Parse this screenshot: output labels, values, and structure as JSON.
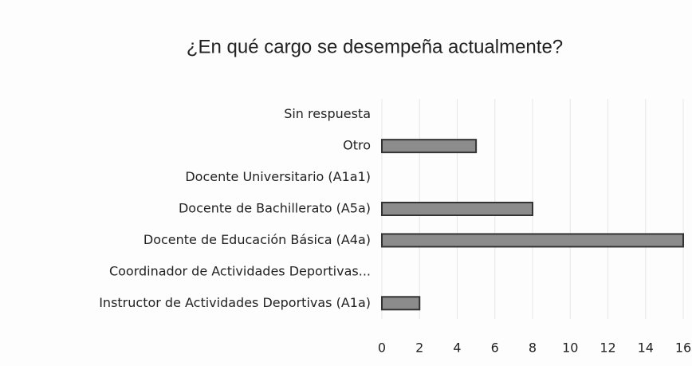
{
  "chart_data": {
    "type": "bar",
    "orientation": "horizontal",
    "title": "¿En qué cargo se desempeña actualmente?",
    "categories": [
      "Sin respuesta",
      "Otro",
      "Docente Universitario (A1a1)",
      "Docente de Bachillerato (A5a)",
      "Docente de Educación Básica (A4a)",
      "Coordinador de Actividades Deportivas...",
      "Instructor de Actividades Deportivas (A1a)"
    ],
    "values": [
      0,
      5,
      0,
      8,
      16,
      0,
      2
    ],
    "color": "#8c8c8c",
    "xlim": [
      0,
      16
    ],
    "xticks": [
      0,
      2,
      4,
      6,
      8,
      10,
      12,
      14,
      16
    ],
    "grid": true
  }
}
